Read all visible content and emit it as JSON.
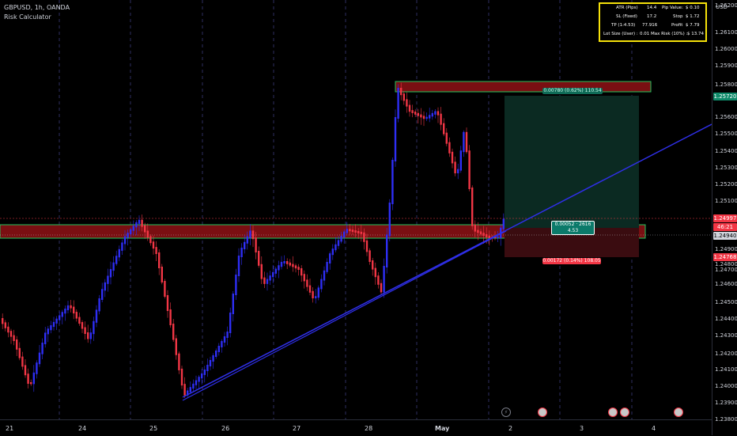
{
  "header": {
    "symbol_title": "GBPUSD, 1h, OANDA",
    "indicator_title": "Risk Calculator"
  },
  "risk_calculator": {
    "rows": [
      {
        "left_label": "ATR (Pips)",
        "left_value": "14.4",
        "right_label": "Pip Value:",
        "right_value": "$ 0.10"
      },
      {
        "left_label": "SL (Fixed)",
        "left_value": "17.2",
        "right_label": "Stop",
        "right_value": "$ 1.72"
      },
      {
        "left_label": "TP (1:4.53)",
        "left_value": "77.916",
        "right_label": "Profit",
        "right_value": "$ 7.79"
      },
      {
        "left_label": "Lot Size (User) :",
        "left_value": "0.01",
        "right_label": "Max Risk (10%) :",
        "right_value": "$ 13.74"
      }
    ]
  },
  "price_axis": {
    "currency": "USD",
    "ticks": [
      "1.26200",
      "1.26100",
      "1.26000",
      "1.25900",
      "1.25800",
      "1.25600",
      "1.25500",
      "1.25400",
      "1.25300",
      "1.25200",
      "1.25100",
      "1.24900",
      "1.24800",
      "1.24700",
      "1.24600",
      "1.24500",
      "1.24400",
      "1.24300",
      "1.24200",
      "1.24100",
      "1.24000",
      "1.23900",
      "1.23800"
    ],
    "badges": {
      "target": "1.25720",
      "current": "1.24997",
      "countdown": "46:21",
      "entry": "1.24940",
      "stop": "1.24768"
    }
  },
  "time_axis": {
    "labels": [
      "21",
      "24",
      "25",
      "26",
      "27",
      "28",
      "May",
      "2",
      "3",
      "4"
    ]
  },
  "position_tool": {
    "target_label": "0.00780 (0.62%) 110.54",
    "entry_label_line1": "0.00052 · 2616",
    "entry_label_line2": "4.53",
    "stop_label": "0.00172 (0.14%) 108.05"
  },
  "colors": {
    "bull": "#2e2ef5",
    "bear": "#f23645",
    "zone_fill": "#7a0f12",
    "zone_border": "#22c55e",
    "trendline": "#2f2fe8",
    "target_fill": "#0b2a22",
    "stop_fill": "#3a0c10",
    "calc_border": "#f5e10a"
  },
  "icons": [
    "lightning-icon",
    "flag-gb-icon",
    "flag-gb-icon",
    "flag-gb-icon",
    "flag-gb-icon"
  ]
}
